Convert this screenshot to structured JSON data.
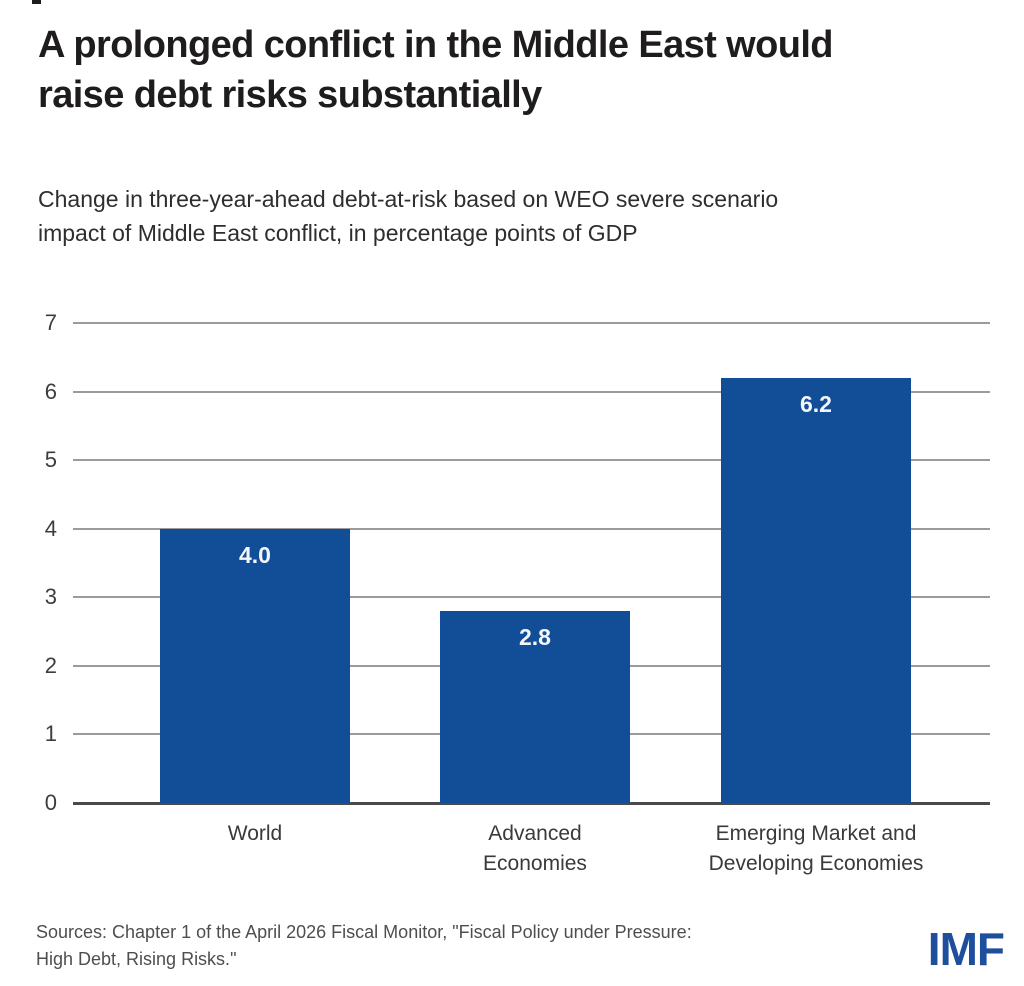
{
  "header": {
    "title_lines": [
      "A prolonged conflict in the Middle East would",
      "raise debt risks substantially"
    ],
    "subtitle_lines": [
      "Change in three-year-ahead debt-at-risk based on WEO severe scenario",
      "impact of Middle East conflict, in percentage points of GDP"
    ]
  },
  "chart_data": {
    "type": "bar",
    "title": "A prolonged conflict in the Middle East would raise debt risks substantially",
    "subtitle": "Change in three-year-ahead debt-at-risk based on WEO severe scenario impact of Middle East conflict, in percentage points of GDP",
    "categories": [
      "World",
      "Advanced\nEconomies",
      "Emerging Market and\nDeveloping Economies"
    ],
    "values": [
      4.0,
      2.8,
      6.2
    ],
    "value_labels": [
      "4.0",
      "2.8",
      "6.2"
    ],
    "xlabel": "",
    "ylabel": "",
    "ylim": [
      0,
      7
    ],
    "yticks": [
      0,
      1,
      2,
      3,
      4,
      5,
      6,
      7
    ],
    "grid": true,
    "legend": false,
    "bar_color": "#114e97",
    "value_label_color": "#f3f6fa",
    "gridline_color": "#9b9b9b",
    "axis_line_color": "#4a4a4a"
  },
  "footer": {
    "source_lines": [
      "Sources: Chapter 1 of the April 2026 Fiscal Monitor, \"Fiscal Policy under Pressure:",
      "High Debt, Rising Risks.\""
    ],
    "logo": "IMF",
    "logo_color": "#1d4f9c"
  }
}
